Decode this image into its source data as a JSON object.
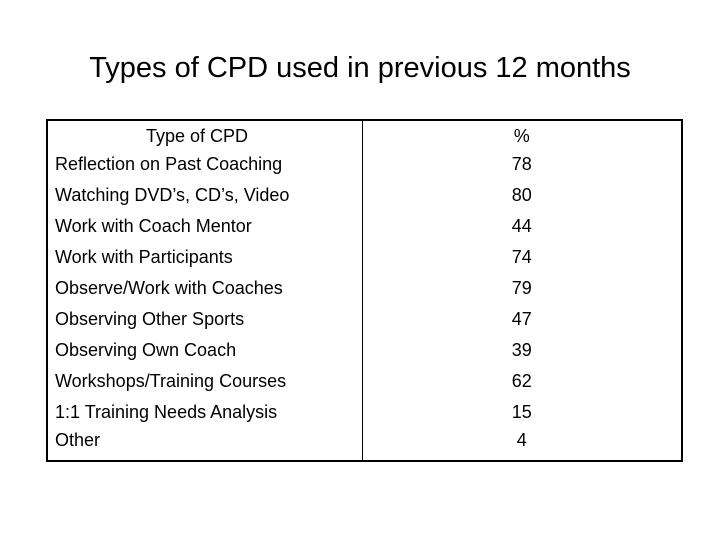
{
  "title": "Types of CPD used in previous 12 months",
  "table": {
    "headers": [
      "Type of CPD",
      "%"
    ],
    "rows": [
      {
        "type": "Reflection on Past Coaching",
        "pct": "78"
      },
      {
        "type": "Watching DVD’s, CD’s, Video",
        "pct": "80"
      },
      {
        "type": "Work with Coach Mentor",
        "pct": "44"
      },
      {
        "type": "Work with Participants",
        "pct": "74"
      },
      {
        "type": "Observe/Work with Coaches",
        "pct": "79"
      },
      {
        "type": "Observing Other Sports",
        "pct": "47"
      },
      {
        "type": "Observing Own Coach",
        "pct": "39"
      },
      {
        "type": "Workshops/Training Courses",
        "pct": "62"
      },
      {
        "type": "1:1 Training Needs Analysis",
        "pct": "15"
      },
      {
        "type": "Other",
        "pct": "4"
      }
    ]
  }
}
